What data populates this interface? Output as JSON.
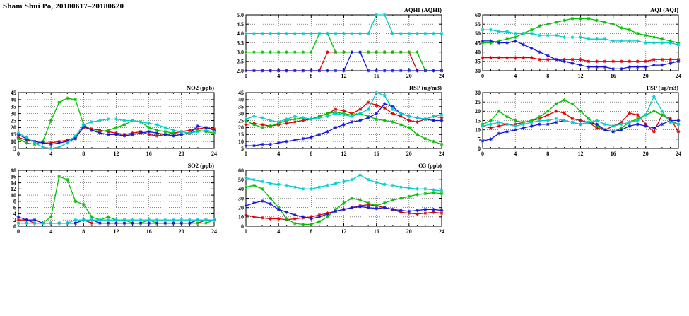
{
  "page_title": "Sham Shui Po, 20180617–20180620",
  "colors": {
    "red": "#dd0000",
    "green": "#00c000",
    "blue": "#1515dd",
    "cyan": "#00cccc"
  },
  "x_hours": [
    0,
    1,
    2,
    3,
    4,
    5,
    6,
    7,
    8,
    9,
    10,
    11,
    12,
    13,
    14,
    15,
    16,
    17,
    18,
    19,
    20,
    21,
    22,
    23,
    24
  ],
  "chart_data": [
    {
      "id": "aqhi",
      "type": "line",
      "title": "AQHI (AQHI)",
      "xlim": [
        0,
        24
      ],
      "xticks": [
        0,
        4,
        8,
        12,
        16,
        20,
        24
      ],
      "ylim": [
        2.0,
        5.0
      ],
      "yticks": [
        2.0,
        2.5,
        3.0,
        3.5,
        4.0,
        4.5,
        5.0
      ],
      "ytick_labels": [
        "2.0",
        "2.5",
        "3.0",
        "3.5",
        "4.0",
        "4.5",
        "5.0"
      ],
      "grid": true,
      "series": [
        {
          "name": "red",
          "color": "red",
          "values": [
            2,
            2,
            2,
            2,
            2,
            2,
            2,
            2,
            2,
            2,
            3,
            3,
            3,
            3,
            3,
            3,
            3,
            3,
            3,
            3,
            3,
            2,
            2,
            2,
            2
          ]
        },
        {
          "name": "green",
          "color": "green",
          "values": [
            3,
            3,
            3,
            3,
            3,
            3,
            3,
            3,
            3,
            4,
            4,
            3,
            3,
            3,
            3,
            3,
            3,
            3,
            3,
            3,
            3,
            3,
            2,
            2,
            2
          ]
        },
        {
          "name": "blue",
          "color": "blue",
          "values": [
            2,
            2,
            2,
            2,
            2,
            2,
            2,
            2,
            2,
            2,
            2,
            2,
            2,
            3,
            3,
            2,
            2,
            2,
            2,
            2,
            2,
            2,
            2,
            2,
            2
          ]
        },
        {
          "name": "cyan",
          "color": "cyan",
          "values": [
            4,
            4,
            4,
            4,
            4,
            4,
            4,
            4,
            4,
            4,
            4,
            4,
            4,
            4,
            4,
            4,
            5,
            5,
            4,
            4,
            4,
            4,
            4,
            4,
            4
          ]
        }
      ]
    },
    {
      "id": "aqi",
      "type": "line",
      "title": "AQI (AQI)",
      "xlim": [
        0,
        24
      ],
      "xticks": [
        0,
        4,
        8,
        12,
        16,
        20,
        24
      ],
      "ylim": [
        30,
        60
      ],
      "yticks": [
        30,
        35,
        40,
        45,
        50,
        55,
        60
      ],
      "grid": true,
      "series": [
        {
          "name": "red",
          "color": "red",
          "values": [
            37,
            37,
            37,
            37,
            37,
            37,
            37,
            36,
            36,
            36,
            36,
            36,
            36,
            35,
            35,
            35,
            35,
            35,
            35,
            35,
            35,
            36,
            36,
            36,
            36
          ]
        },
        {
          "name": "green",
          "color": "green",
          "values": [
            45,
            45,
            46,
            47,
            48,
            50,
            52,
            54,
            55,
            56,
            57,
            58,
            58,
            58,
            57,
            56,
            55,
            53,
            52,
            50,
            49,
            48,
            47,
            46,
            45
          ]
        },
        {
          "name": "blue",
          "color": "blue",
          "values": [
            46,
            46,
            45,
            45,
            46,
            44,
            42,
            40,
            38,
            36,
            35,
            34,
            33,
            32,
            32,
            32,
            31,
            31,
            32,
            32,
            32,
            33,
            33,
            34,
            35
          ]
        },
        {
          "name": "cyan",
          "color": "cyan",
          "values": [
            52,
            52,
            51,
            51,
            50,
            50,
            50,
            49,
            49,
            49,
            48,
            48,
            48,
            47,
            47,
            47,
            46,
            46,
            46,
            46,
            45,
            45,
            45,
            45,
            44
          ]
        }
      ]
    },
    {
      "id": "no2",
      "type": "line",
      "title": "NO2 (ppb)",
      "xlim": [
        0,
        24
      ],
      "xticks": [
        0,
        4,
        8,
        12,
        16,
        20,
        24
      ],
      "ylim": [
        5,
        45
      ],
      "yticks": [
        5,
        10,
        15,
        20,
        25,
        30,
        35,
        40,
        45
      ],
      "grid": true,
      "series": [
        {
          "name": "red",
          "color": "red",
          "values": [
            13,
            11,
            10,
            9,
            9,
            10,
            11,
            13,
            20,
            19,
            18,
            17,
            16,
            15,
            16,
            17,
            15,
            14,
            15,
            16,
            17,
            18,
            19,
            20,
            19
          ]
        },
        {
          "name": "green",
          "color": "green",
          "values": [
            12,
            9,
            8,
            10,
            25,
            38,
            41,
            40,
            22,
            18,
            17,
            18,
            20,
            22,
            25,
            24,
            20,
            18,
            17,
            16,
            15,
            16,
            18,
            17,
            16
          ]
        },
        {
          "name": "blue",
          "color": "blue",
          "values": [
            15,
            12,
            10,
            9,
            8,
            9,
            10,
            12,
            21,
            18,
            16,
            15,
            15,
            14,
            15,
            16,
            17,
            16,
            15,
            14,
            15,
            16,
            21,
            20,
            18
          ]
        },
        {
          "name": "cyan",
          "color": "cyan",
          "values": [
            16,
            13,
            9,
            6,
            5,
            6,
            9,
            14,
            22,
            24,
            25,
            26,
            26,
            25,
            25,
            24,
            23,
            22,
            20,
            18,
            17,
            16,
            17,
            18,
            17
          ]
        }
      ]
    },
    {
      "id": "rsp",
      "type": "line",
      "title": "RSP (ug/m3)",
      "xlim": [
        0,
        24
      ],
      "xticks": [
        0,
        4,
        8,
        12,
        16,
        20,
        24
      ],
      "ylim": [
        5,
        45
      ],
      "yticks": [
        5,
        10,
        15,
        20,
        25,
        30,
        35,
        40,
        45
      ],
      "grid": true,
      "series": [
        {
          "name": "red",
          "color": "red",
          "values": [
            22,
            23,
            22,
            21,
            22,
            23,
            24,
            25,
            26,
            28,
            30,
            33,
            32,
            30,
            33,
            38,
            36,
            34,
            30,
            28,
            25,
            24,
            26,
            28,
            27
          ]
        },
        {
          "name": "green",
          "color": "green",
          "values": [
            25,
            22,
            20,
            21,
            23,
            25,
            26,
            27,
            26,
            28,
            30,
            31,
            30,
            29,
            30,
            28,
            26,
            25,
            24,
            22,
            20,
            15,
            12,
            10,
            8
          ]
        },
        {
          "name": "blue",
          "color": "blue",
          "values": [
            7,
            7,
            8,
            8,
            9,
            10,
            11,
            12,
            13,
            15,
            17,
            20,
            22,
            24,
            25,
            27,
            30,
            37,
            35,
            30,
            28,
            27,
            26,
            25,
            25
          ]
        },
        {
          "name": "cyan",
          "color": "cyan",
          "values": [
            26,
            28,
            27,
            25,
            24,
            26,
            28,
            27,
            26,
            27,
            28,
            30,
            29,
            28,
            30,
            33,
            45,
            43,
            33,
            30,
            28,
            27,
            26,
            28,
            29
          ]
        }
      ]
    },
    {
      "id": "fsp",
      "type": "line",
      "title": "FSP (ug/m3)",
      "xlim": [
        0,
        24
      ],
      "xticks": [
        0,
        4,
        8,
        12,
        16,
        20,
        24
      ],
      "ylim": [
        0,
        30
      ],
      "yticks": [
        0,
        5,
        10,
        15,
        20,
        25,
        30
      ],
      "grid": true,
      "series": [
        {
          "name": "red",
          "color": "red",
          "values": [
            12,
            11,
            12,
            13,
            13,
            14,
            15,
            16,
            18,
            20,
            19,
            16,
            15,
            14,
            11,
            10,
            12,
            14,
            19,
            18,
            13,
            9,
            18,
            16,
            9
          ]
        },
        {
          "name": "green",
          "color": "green",
          "values": [
            13,
            15,
            20,
            17,
            15,
            14,
            15,
            17,
            20,
            24,
            26,
            24,
            20,
            16,
            12,
            10,
            9,
            11,
            14,
            16,
            18,
            20,
            18,
            15,
            13
          ]
        },
        {
          "name": "blue",
          "color": "blue",
          "values": [
            4,
            5,
            8,
            9,
            10,
            11,
            12,
            13,
            13,
            14,
            15,
            14,
            13,
            14,
            13,
            10,
            9,
            10,
            12,
            13,
            12,
            11,
            13,
            15,
            15
          ]
        },
        {
          "name": "cyan",
          "color": "cyan",
          "values": [
            12,
            13,
            14,
            13,
            12,
            13,
            14,
            15,
            15,
            16,
            15,
            14,
            13,
            14,
            15,
            13,
            12,
            13,
            14,
            15,
            18,
            28,
            20,
            14,
            13
          ]
        }
      ]
    },
    {
      "id": "so2",
      "type": "line",
      "title": "SO2 (ppb)",
      "xlim": [
        0,
        24
      ],
      "xticks": [
        0,
        4,
        8,
        12,
        16,
        20,
        24
      ],
      "ylim": [
        0,
        18
      ],
      "yticks": [
        0,
        2,
        4,
        6,
        8,
        10,
        12,
        14,
        16,
        18
      ],
      "grid": true,
      "series": [
        {
          "name": "red",
          "color": "red",
          "values": [
            2,
            2,
            1,
            1,
            1,
            1,
            1,
            1,
            2,
            1,
            1,
            1,
            1,
            1,
            1,
            1,
            1,
            1,
            1,
            1,
            1,
            1,
            1,
            2,
            2
          ]
        },
        {
          "name": "green",
          "color": "green",
          "values": [
            1,
            1,
            1,
            1,
            3,
            16,
            15,
            8,
            7,
            3,
            2,
            3,
            2,
            2,
            1,
            1,
            2,
            1,
            1,
            1,
            1,
            1,
            1,
            1,
            2
          ]
        },
        {
          "name": "blue",
          "color": "blue",
          "values": [
            3,
            2,
            2,
            1,
            1,
            1,
            1,
            1,
            2,
            2,
            1,
            1,
            1,
            1,
            1,
            1,
            1,
            1,
            1,
            1,
            1,
            1,
            2,
            2,
            2
          ]
        },
        {
          "name": "cyan",
          "color": "cyan",
          "values": [
            1,
            1,
            1,
            1,
            1,
            1,
            1,
            2,
            2,
            2,
            2,
            2,
            2,
            2,
            2,
            2,
            2,
            2,
            2,
            2,
            2,
            2,
            2,
            2,
            2
          ]
        }
      ]
    },
    {
      "id": "o3",
      "type": "line",
      "title": "O3 (ppb)",
      "xlim": [
        0,
        24
      ],
      "xticks": [
        0,
        4,
        8,
        12,
        16,
        20,
        24
      ],
      "ylim": [
        0,
        60
      ],
      "yticks": [
        0,
        10,
        20,
        30,
        40,
        50,
        60
      ],
      "grid": true,
      "series": [
        {
          "name": "red",
          "color": "red",
          "values": [
            12,
            10,
            9,
            8,
            8,
            7,
            8,
            9,
            10,
            12,
            14,
            16,
            18,
            20,
            22,
            23,
            22,
            20,
            18,
            15,
            14,
            13,
            14,
            15,
            14
          ]
        },
        {
          "name": "green",
          "color": "green",
          "values": [
            42,
            44,
            40,
            30,
            20,
            8,
            3,
            2,
            2,
            5,
            10,
            18,
            25,
            30,
            28,
            25,
            22,
            25,
            28,
            30,
            32,
            34,
            35,
            36,
            35
          ]
        },
        {
          "name": "blue",
          "color": "blue",
          "values": [
            22,
            25,
            27,
            24,
            18,
            15,
            12,
            10,
            8,
            10,
            13,
            16,
            18,
            20,
            21,
            20,
            19,
            20,
            18,
            17,
            16,
            17,
            18,
            18,
            17
          ]
        },
        {
          "name": "cyan",
          "color": "cyan",
          "values": [
            52,
            50,
            48,
            46,
            45,
            44,
            42,
            40,
            40,
            42,
            44,
            46,
            48,
            50,
            55,
            50,
            47,
            45,
            44,
            42,
            41,
            40,
            40,
            39,
            38
          ]
        }
      ]
    }
  ]
}
